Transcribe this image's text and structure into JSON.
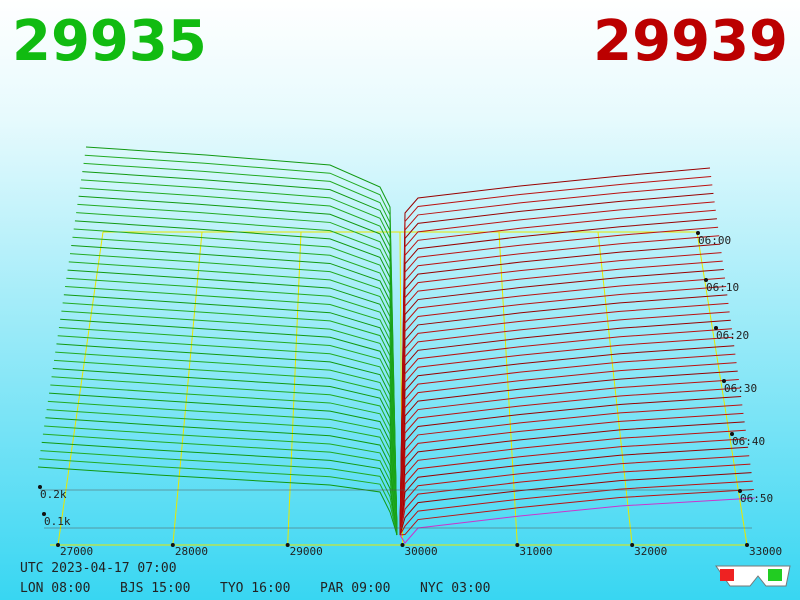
{
  "bid_price": "29935",
  "ask_price": "29939",
  "price_axis": [
    "27000",
    "28000",
    "29000",
    "30000",
    "31000",
    "32000",
    "33000"
  ],
  "depth_axis": [
    "0.2k",
    "0.1k"
  ],
  "time_axis": [
    "06:00",
    "06:10",
    "06:20",
    "06:30",
    "06:40",
    "06:50"
  ],
  "utc": "UTC 2023-04-17 07:00",
  "clocks": [
    "LON 08:00",
    "BJS 15:00",
    "TYO 16:00",
    "PAR 09:00",
    "NYC 03:00"
  ]
}
